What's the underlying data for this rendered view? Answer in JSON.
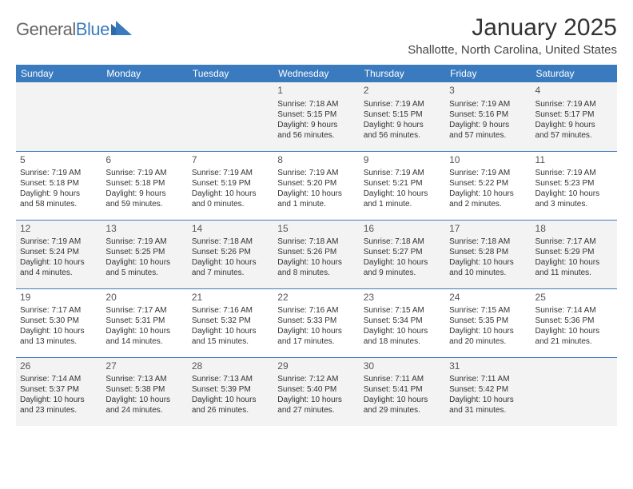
{
  "logo": {
    "general": "General",
    "blue": "Blue"
  },
  "title": "January 2025",
  "location": "Shallotte, North Carolina, United States",
  "colors": {
    "header_bg": "#3a7bbf",
    "header_text": "#ffffff",
    "row_even_bg": "#f3f3f3",
    "row_odd_bg": "#ffffff",
    "border": "#3a7bbf",
    "text": "#333333"
  },
  "weekdays": [
    "Sunday",
    "Monday",
    "Tuesday",
    "Wednesday",
    "Thursday",
    "Friday",
    "Saturday"
  ],
  "weeks": [
    [
      null,
      null,
      null,
      {
        "d": "1",
        "sr": "Sunrise: 7:18 AM",
        "ss": "Sunset: 5:15 PM",
        "dl1": "Daylight: 9 hours",
        "dl2": "and 56 minutes."
      },
      {
        "d": "2",
        "sr": "Sunrise: 7:19 AM",
        "ss": "Sunset: 5:15 PM",
        "dl1": "Daylight: 9 hours",
        "dl2": "and 56 minutes."
      },
      {
        "d": "3",
        "sr": "Sunrise: 7:19 AM",
        "ss": "Sunset: 5:16 PM",
        "dl1": "Daylight: 9 hours",
        "dl2": "and 57 minutes."
      },
      {
        "d": "4",
        "sr": "Sunrise: 7:19 AM",
        "ss": "Sunset: 5:17 PM",
        "dl1": "Daylight: 9 hours",
        "dl2": "and 57 minutes."
      }
    ],
    [
      {
        "d": "5",
        "sr": "Sunrise: 7:19 AM",
        "ss": "Sunset: 5:18 PM",
        "dl1": "Daylight: 9 hours",
        "dl2": "and 58 minutes."
      },
      {
        "d": "6",
        "sr": "Sunrise: 7:19 AM",
        "ss": "Sunset: 5:18 PM",
        "dl1": "Daylight: 9 hours",
        "dl2": "and 59 minutes."
      },
      {
        "d": "7",
        "sr": "Sunrise: 7:19 AM",
        "ss": "Sunset: 5:19 PM",
        "dl1": "Daylight: 10 hours",
        "dl2": "and 0 minutes."
      },
      {
        "d": "8",
        "sr": "Sunrise: 7:19 AM",
        "ss": "Sunset: 5:20 PM",
        "dl1": "Daylight: 10 hours",
        "dl2": "and 1 minute."
      },
      {
        "d": "9",
        "sr": "Sunrise: 7:19 AM",
        "ss": "Sunset: 5:21 PM",
        "dl1": "Daylight: 10 hours",
        "dl2": "and 1 minute."
      },
      {
        "d": "10",
        "sr": "Sunrise: 7:19 AM",
        "ss": "Sunset: 5:22 PM",
        "dl1": "Daylight: 10 hours",
        "dl2": "and 2 minutes."
      },
      {
        "d": "11",
        "sr": "Sunrise: 7:19 AM",
        "ss": "Sunset: 5:23 PM",
        "dl1": "Daylight: 10 hours",
        "dl2": "and 3 minutes."
      }
    ],
    [
      {
        "d": "12",
        "sr": "Sunrise: 7:19 AM",
        "ss": "Sunset: 5:24 PM",
        "dl1": "Daylight: 10 hours",
        "dl2": "and 4 minutes."
      },
      {
        "d": "13",
        "sr": "Sunrise: 7:19 AM",
        "ss": "Sunset: 5:25 PM",
        "dl1": "Daylight: 10 hours",
        "dl2": "and 5 minutes."
      },
      {
        "d": "14",
        "sr": "Sunrise: 7:18 AM",
        "ss": "Sunset: 5:26 PM",
        "dl1": "Daylight: 10 hours",
        "dl2": "and 7 minutes."
      },
      {
        "d": "15",
        "sr": "Sunrise: 7:18 AM",
        "ss": "Sunset: 5:26 PM",
        "dl1": "Daylight: 10 hours",
        "dl2": "and 8 minutes."
      },
      {
        "d": "16",
        "sr": "Sunrise: 7:18 AM",
        "ss": "Sunset: 5:27 PM",
        "dl1": "Daylight: 10 hours",
        "dl2": "and 9 minutes."
      },
      {
        "d": "17",
        "sr": "Sunrise: 7:18 AM",
        "ss": "Sunset: 5:28 PM",
        "dl1": "Daylight: 10 hours",
        "dl2": "and 10 minutes."
      },
      {
        "d": "18",
        "sr": "Sunrise: 7:17 AM",
        "ss": "Sunset: 5:29 PM",
        "dl1": "Daylight: 10 hours",
        "dl2": "and 11 minutes."
      }
    ],
    [
      {
        "d": "19",
        "sr": "Sunrise: 7:17 AM",
        "ss": "Sunset: 5:30 PM",
        "dl1": "Daylight: 10 hours",
        "dl2": "and 13 minutes."
      },
      {
        "d": "20",
        "sr": "Sunrise: 7:17 AM",
        "ss": "Sunset: 5:31 PM",
        "dl1": "Daylight: 10 hours",
        "dl2": "and 14 minutes."
      },
      {
        "d": "21",
        "sr": "Sunrise: 7:16 AM",
        "ss": "Sunset: 5:32 PM",
        "dl1": "Daylight: 10 hours",
        "dl2": "and 15 minutes."
      },
      {
        "d": "22",
        "sr": "Sunrise: 7:16 AM",
        "ss": "Sunset: 5:33 PM",
        "dl1": "Daylight: 10 hours",
        "dl2": "and 17 minutes."
      },
      {
        "d": "23",
        "sr": "Sunrise: 7:15 AM",
        "ss": "Sunset: 5:34 PM",
        "dl1": "Daylight: 10 hours",
        "dl2": "and 18 minutes."
      },
      {
        "d": "24",
        "sr": "Sunrise: 7:15 AM",
        "ss": "Sunset: 5:35 PM",
        "dl1": "Daylight: 10 hours",
        "dl2": "and 20 minutes."
      },
      {
        "d": "25",
        "sr": "Sunrise: 7:14 AM",
        "ss": "Sunset: 5:36 PM",
        "dl1": "Daylight: 10 hours",
        "dl2": "and 21 minutes."
      }
    ],
    [
      {
        "d": "26",
        "sr": "Sunrise: 7:14 AM",
        "ss": "Sunset: 5:37 PM",
        "dl1": "Daylight: 10 hours",
        "dl2": "and 23 minutes."
      },
      {
        "d": "27",
        "sr": "Sunrise: 7:13 AM",
        "ss": "Sunset: 5:38 PM",
        "dl1": "Daylight: 10 hours",
        "dl2": "and 24 minutes."
      },
      {
        "d": "28",
        "sr": "Sunrise: 7:13 AM",
        "ss": "Sunset: 5:39 PM",
        "dl1": "Daylight: 10 hours",
        "dl2": "and 26 minutes."
      },
      {
        "d": "29",
        "sr": "Sunrise: 7:12 AM",
        "ss": "Sunset: 5:40 PM",
        "dl1": "Daylight: 10 hours",
        "dl2": "and 27 minutes."
      },
      {
        "d": "30",
        "sr": "Sunrise: 7:11 AM",
        "ss": "Sunset: 5:41 PM",
        "dl1": "Daylight: 10 hours",
        "dl2": "and 29 minutes."
      },
      {
        "d": "31",
        "sr": "Sunrise: 7:11 AM",
        "ss": "Sunset: 5:42 PM",
        "dl1": "Daylight: 10 hours",
        "dl2": "and 31 minutes."
      },
      null
    ]
  ]
}
